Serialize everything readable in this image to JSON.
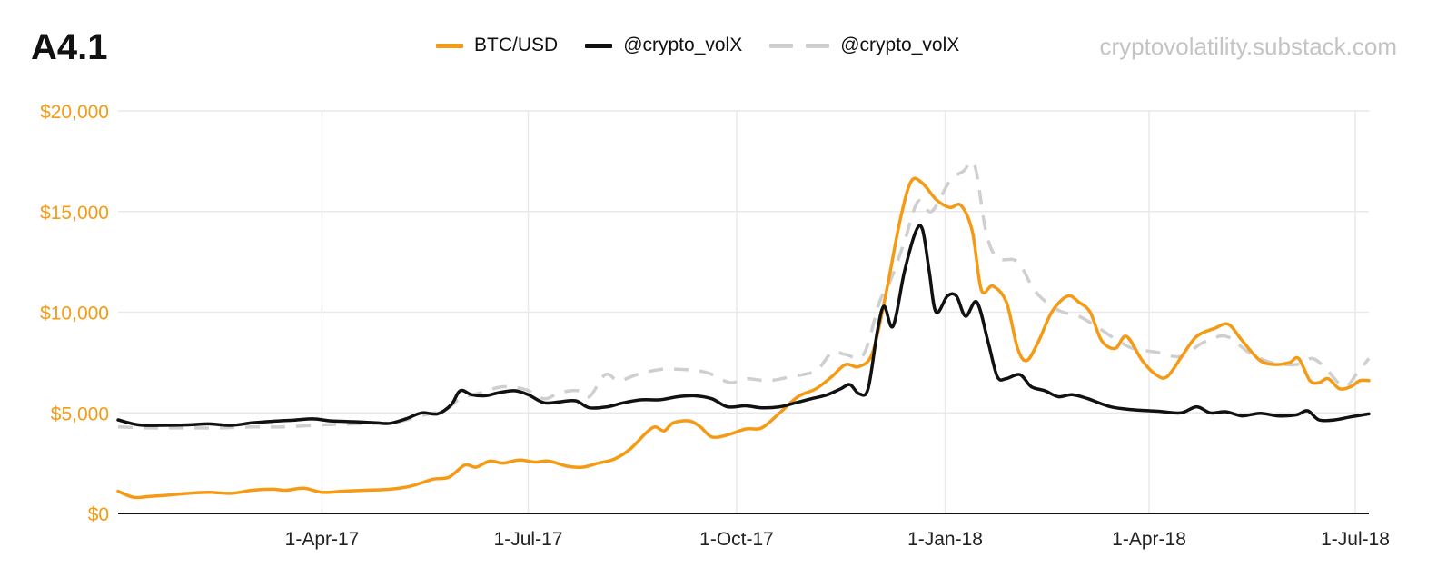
{
  "header": {
    "title": "A4.1",
    "source": "cryptovolatility.substack.com"
  },
  "chart_data": {
    "type": "line",
    "title": "A4.1",
    "xlabel": "",
    "ylabel": "",
    "ylim": [
      0,
      20000
    ],
    "xlim": [
      "2017-01-01",
      "2018-07-07"
    ],
    "grid": true,
    "legend_position": "top",
    "y_ticks": [
      {
        "value": 0,
        "label": "$0"
      },
      {
        "value": 5000,
        "label": "$5,000"
      },
      {
        "value": 10000,
        "label": "$10,000"
      },
      {
        "value": 15000,
        "label": "$15,000"
      },
      {
        "value": 20000,
        "label": "$20,000"
      }
    ],
    "x_ticks": [
      {
        "date": "2017-04-01",
        "label": "1-Apr-17"
      },
      {
        "date": "2017-07-01",
        "label": "1-Jul-17"
      },
      {
        "date": "2017-10-01",
        "label": "1-Oct-17"
      },
      {
        "date": "2018-01-01",
        "label": "1-Jan-18"
      },
      {
        "date": "2018-04-01",
        "label": "1-Apr-18"
      },
      {
        "date": "2018-07-01",
        "label": "1-Jul-18"
      }
    ],
    "series": [
      {
        "name": "BTC/USD",
        "color": "#f59a14",
        "style": "solid",
        "points": [
          [
            "2017-01-01",
            1100
          ],
          [
            "2017-01-08",
            800
          ],
          [
            "2017-01-15",
            850
          ],
          [
            "2017-01-22",
            900
          ],
          [
            "2017-02-01",
            1000
          ],
          [
            "2017-02-10",
            1050
          ],
          [
            "2017-02-20",
            1000
          ],
          [
            "2017-03-01",
            1150
          ],
          [
            "2017-03-10",
            1200
          ],
          [
            "2017-03-16",
            1150
          ],
          [
            "2017-03-24",
            1250
          ],
          [
            "2017-04-01",
            1050
          ],
          [
            "2017-04-10",
            1100
          ],
          [
            "2017-04-20",
            1150
          ],
          [
            "2017-05-01",
            1200
          ],
          [
            "2017-05-10",
            1350
          ],
          [
            "2017-05-20",
            1700
          ],
          [
            "2017-05-27",
            1800
          ],
          [
            "2017-06-03",
            2400
          ],
          [
            "2017-06-08",
            2300
          ],
          [
            "2017-06-14",
            2600
          ],
          [
            "2017-06-20",
            2500
          ],
          [
            "2017-06-27",
            2650
          ],
          [
            "2017-07-04",
            2550
          ],
          [
            "2017-07-10",
            2600
          ],
          [
            "2017-07-18",
            2350
          ],
          [
            "2017-07-25",
            2300
          ],
          [
            "2017-08-01",
            2500
          ],
          [
            "2017-08-08",
            2700
          ],
          [
            "2017-08-15",
            3200
          ],
          [
            "2017-08-22",
            4000
          ],
          [
            "2017-08-26",
            4300
          ],
          [
            "2017-08-30",
            4100
          ],
          [
            "2017-09-03",
            4500
          ],
          [
            "2017-09-10",
            4600
          ],
          [
            "2017-09-15",
            4300
          ],
          [
            "2017-09-20",
            3800
          ],
          [
            "2017-09-27",
            3900
          ],
          [
            "2017-10-05",
            4200
          ],
          [
            "2017-10-12",
            4250
          ],
          [
            "2017-10-20",
            5000
          ],
          [
            "2017-10-28",
            5800
          ],
          [
            "2017-11-05",
            6200
          ],
          [
            "2017-11-12",
            6800
          ],
          [
            "2017-11-18",
            7400
          ],
          [
            "2017-11-24",
            7300
          ],
          [
            "2017-11-30",
            8000
          ],
          [
            "2017-12-06",
            11000
          ],
          [
            "2017-12-12",
            14500
          ],
          [
            "2017-12-17",
            16500
          ],
          [
            "2017-12-22",
            16400
          ],
          [
            "2017-12-28",
            15600
          ],
          [
            "2018-01-03",
            15200
          ],
          [
            "2018-01-08",
            15300
          ],
          [
            "2018-01-13",
            14000
          ],
          [
            "2018-01-17",
            11100
          ],
          [
            "2018-01-22",
            11300
          ],
          [
            "2018-01-28",
            10500
          ],
          [
            "2018-02-02",
            8200
          ],
          [
            "2018-02-06",
            7600
          ],
          [
            "2018-02-11",
            8500
          ],
          [
            "2018-02-17",
            10000
          ],
          [
            "2018-02-24",
            10800
          ],
          [
            "2018-03-01",
            10500
          ],
          [
            "2018-03-06",
            10000
          ],
          [
            "2018-03-11",
            8600
          ],
          [
            "2018-03-17",
            8200
          ],
          [
            "2018-03-22",
            8800
          ],
          [
            "2018-03-29",
            7600
          ],
          [
            "2018-04-04",
            6900
          ],
          [
            "2018-04-09",
            6800
          ],
          [
            "2018-04-16",
            7900
          ],
          [
            "2018-04-22",
            8800
          ],
          [
            "2018-04-30",
            9200
          ],
          [
            "2018-05-06",
            9400
          ],
          [
            "2018-05-12",
            8600
          ],
          [
            "2018-05-20",
            7600
          ],
          [
            "2018-05-27",
            7400
          ],
          [
            "2018-06-02",
            7500
          ],
          [
            "2018-06-06",
            7700
          ],
          [
            "2018-06-11",
            6600
          ],
          [
            "2018-06-15",
            6500
          ],
          [
            "2018-06-19",
            6700
          ],
          [
            "2018-06-24",
            6200
          ],
          [
            "2018-06-29",
            6300
          ],
          [
            "2018-07-03",
            6600
          ],
          [
            "2018-07-07",
            6600
          ]
        ]
      },
      {
        "name": "@crypto_volX",
        "color": "#111111",
        "style": "solid",
        "points": [
          [
            "2017-01-01",
            4650
          ],
          [
            "2017-01-10",
            4400
          ],
          [
            "2017-01-20",
            4380
          ],
          [
            "2017-02-01",
            4400
          ],
          [
            "2017-02-10",
            4450
          ],
          [
            "2017-02-20",
            4380
          ],
          [
            "2017-03-01",
            4500
          ],
          [
            "2017-03-10",
            4580
          ],
          [
            "2017-03-20",
            4640
          ],
          [
            "2017-03-28",
            4700
          ],
          [
            "2017-04-05",
            4600
          ],
          [
            "2017-04-15",
            4560
          ],
          [
            "2017-04-25",
            4500
          ],
          [
            "2017-05-01",
            4480
          ],
          [
            "2017-05-08",
            4700
          ],
          [
            "2017-05-15",
            5000
          ],
          [
            "2017-05-22",
            4950
          ],
          [
            "2017-05-28",
            5400
          ],
          [
            "2017-06-01",
            6100
          ],
          [
            "2017-06-06",
            5900
          ],
          [
            "2017-06-12",
            5850
          ],
          [
            "2017-06-18",
            6000
          ],
          [
            "2017-06-25",
            6100
          ],
          [
            "2017-07-01",
            5900
          ],
          [
            "2017-07-08",
            5500
          ],
          [
            "2017-07-15",
            5550
          ],
          [
            "2017-07-22",
            5600
          ],
          [
            "2017-07-28",
            5250
          ],
          [
            "2017-08-05",
            5300
          ],
          [
            "2017-08-12",
            5500
          ],
          [
            "2017-08-20",
            5650
          ],
          [
            "2017-08-28",
            5650
          ],
          [
            "2017-09-05",
            5800
          ],
          [
            "2017-09-12",
            5850
          ],
          [
            "2017-09-20",
            5700
          ],
          [
            "2017-09-27",
            5300
          ],
          [
            "2017-10-05",
            5350
          ],
          [
            "2017-10-12",
            5250
          ],
          [
            "2017-10-20",
            5300
          ],
          [
            "2017-10-27",
            5500
          ],
          [
            "2017-11-03",
            5700
          ],
          [
            "2017-11-10",
            5900
          ],
          [
            "2017-11-16",
            6200
          ],
          [
            "2017-11-20",
            6400
          ],
          [
            "2017-11-24",
            5950
          ],
          [
            "2017-11-28",
            6200
          ],
          [
            "2017-12-02",
            9000
          ],
          [
            "2017-12-05",
            10300
          ],
          [
            "2017-12-09",
            9300
          ],
          [
            "2017-12-14",
            12000
          ],
          [
            "2017-12-19",
            14000
          ],
          [
            "2017-12-22",
            14100
          ],
          [
            "2017-12-25",
            12000
          ],
          [
            "2017-12-28",
            10000
          ],
          [
            "2018-01-02",
            10800
          ],
          [
            "2018-01-06",
            10800
          ],
          [
            "2018-01-10",
            9800
          ],
          [
            "2018-01-15",
            10500
          ],
          [
            "2018-01-20",
            8500
          ],
          [
            "2018-01-24",
            6800
          ],
          [
            "2018-01-28",
            6700
          ],
          [
            "2018-02-03",
            6900
          ],
          [
            "2018-02-08",
            6300
          ],
          [
            "2018-02-14",
            6100
          ],
          [
            "2018-02-20",
            5800
          ],
          [
            "2018-02-26",
            5900
          ],
          [
            "2018-03-05",
            5700
          ],
          [
            "2018-03-15",
            5300
          ],
          [
            "2018-03-25",
            5150
          ],
          [
            "2018-04-05",
            5080
          ],
          [
            "2018-04-15",
            5000
          ],
          [
            "2018-04-22",
            5300
          ],
          [
            "2018-04-28",
            5000
          ],
          [
            "2018-05-05",
            5050
          ],
          [
            "2018-05-12",
            4850
          ],
          [
            "2018-05-20",
            4980
          ],
          [
            "2018-05-28",
            4850
          ],
          [
            "2018-06-05",
            4900
          ],
          [
            "2018-06-10",
            5100
          ],
          [
            "2018-06-15",
            4650
          ],
          [
            "2018-06-22",
            4650
          ],
          [
            "2018-06-29",
            4800
          ],
          [
            "2018-07-07",
            4950
          ]
        ]
      },
      {
        "name": "@crypto_volX",
        "color": "#cfcfcf",
        "style": "dashed",
        "points": [
          [
            "2017-01-01",
            4300
          ],
          [
            "2017-01-15",
            4250
          ],
          [
            "2017-02-01",
            4250
          ],
          [
            "2017-02-15",
            4250
          ],
          [
            "2017-03-01",
            4300
          ],
          [
            "2017-03-15",
            4300
          ],
          [
            "2017-04-01",
            4400
          ],
          [
            "2017-04-15",
            4450
          ],
          [
            "2017-05-01",
            4500
          ],
          [
            "2017-05-10",
            4700
          ],
          [
            "2017-05-18",
            4950
          ],
          [
            "2017-05-25",
            5100
          ],
          [
            "2017-06-01",
            5700
          ],
          [
            "2017-06-10",
            6000
          ],
          [
            "2017-06-20",
            6300
          ],
          [
            "2017-06-30",
            6150
          ],
          [
            "2017-07-08",
            5700
          ],
          [
            "2017-07-15",
            6000
          ],
          [
            "2017-07-23",
            6100
          ],
          [
            "2017-07-28",
            5800
          ],
          [
            "2017-08-04",
            6900
          ],
          [
            "2017-08-10",
            6600
          ],
          [
            "2017-08-18",
            6900
          ],
          [
            "2017-08-28",
            7150
          ],
          [
            "2017-09-08",
            7150
          ],
          [
            "2017-09-18",
            7000
          ],
          [
            "2017-09-28",
            6500
          ],
          [
            "2017-10-05",
            6700
          ],
          [
            "2017-10-15",
            6600
          ],
          [
            "2017-10-25",
            6800
          ],
          [
            "2017-11-05",
            7100
          ],
          [
            "2017-11-12",
            8000
          ],
          [
            "2017-11-18",
            7900
          ],
          [
            "2017-11-26",
            7900
          ],
          [
            "2017-12-03",
            10500
          ],
          [
            "2017-12-08",
            11600
          ],
          [
            "2017-12-14",
            13500
          ],
          [
            "2017-12-20",
            15500
          ],
          [
            "2017-12-26",
            15000
          ],
          [
            "2018-01-03",
            16500
          ],
          [
            "2018-01-09",
            17000
          ],
          [
            "2018-01-14",
            17300
          ],
          [
            "2018-01-19",
            14000
          ],
          [
            "2018-01-24",
            12700
          ],
          [
            "2018-02-02",
            12500
          ],
          [
            "2018-02-10",
            11000
          ],
          [
            "2018-02-20",
            10100
          ],
          [
            "2018-03-01",
            9800
          ],
          [
            "2018-03-10",
            9200
          ],
          [
            "2018-03-18",
            8600
          ],
          [
            "2018-03-25",
            8200
          ],
          [
            "2018-04-05",
            8000
          ],
          [
            "2018-04-15",
            7800
          ],
          [
            "2018-04-25",
            8500
          ],
          [
            "2018-05-05",
            8800
          ],
          [
            "2018-05-15",
            8000
          ],
          [
            "2018-05-25",
            7500
          ],
          [
            "2018-06-05",
            7400
          ],
          [
            "2018-06-12",
            7700
          ],
          [
            "2018-06-18",
            7200
          ],
          [
            "2018-06-26",
            6300
          ],
          [
            "2018-07-02",
            7000
          ],
          [
            "2018-07-07",
            7700
          ]
        ]
      }
    ]
  },
  "legend": [
    {
      "label": "BTC/USD",
      "color": "#f59a14",
      "style": "solid"
    },
    {
      "label": "@crypto_volX",
      "color": "#111111",
      "style": "solid"
    },
    {
      "label": "@crypto_volX",
      "color": "#cfcfcf",
      "style": "dashed"
    }
  ]
}
